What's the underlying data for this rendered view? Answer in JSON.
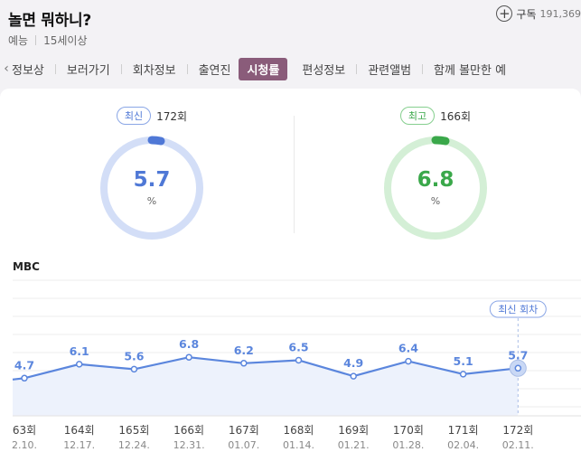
{
  "header": {
    "title": "놀면 뭐하니?",
    "genre": "예능",
    "rating": "15세이상",
    "subscribe_label": "구독",
    "subscribe_count": "191,369"
  },
  "tabs": [
    {
      "label": "정보상"
    },
    {
      "label": "보러가기"
    },
    {
      "label": "회차정보"
    },
    {
      "label": "출연진"
    },
    {
      "label": "시청률"
    },
    {
      "label": "편성정보"
    },
    {
      "label": "관련앨범"
    },
    {
      "label": "함께 볼만한 예"
    }
  ],
  "latest": {
    "tag": "최신",
    "episode": "172회",
    "value": "5.7",
    "unit": "%"
  },
  "highest": {
    "tag": "최고",
    "episode": "166회",
    "value": "6.8",
    "unit": "%"
  },
  "colors": {
    "accent_tab": "#8a5c7a",
    "blue": "#4f78d6",
    "green": "#3aa84a"
  },
  "chart_data": {
    "type": "area",
    "channel": "MBC",
    "x": [
      "63회",
      "164회",
      "165회",
      "166회",
      "167회",
      "168회",
      "169회",
      "170회",
      "171회",
      "172회"
    ],
    "dates": [
      "2.10.",
      "12.17.",
      "12.24.",
      "12.31.",
      "01.07.",
      "01.14.",
      "01.21.",
      "01.28.",
      "02.04.",
      "02.11."
    ],
    "values": [
      4.7,
      6.1,
      5.6,
      6.8,
      6.2,
      6.5,
      4.9,
      6.4,
      5.1,
      5.7
    ],
    "callout": "최신 회차",
    "ylim": [
      0,
      20
    ]
  }
}
